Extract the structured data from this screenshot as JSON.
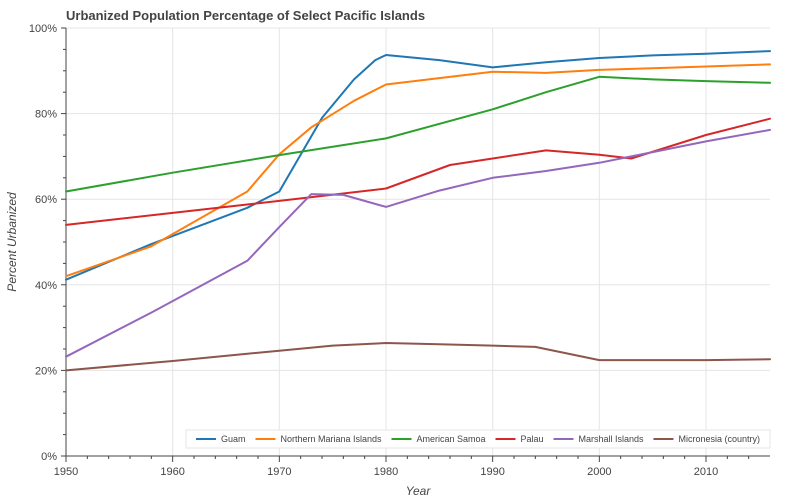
{
  "chart_data": {
    "type": "line",
    "title": "Urbanized Population Percentage of Select Pacific Islands",
    "xlabel": "Year",
    "ylabel": "Percent Urbanized",
    "xlim": [
      1950,
      2016
    ],
    "ylim": [
      0,
      100
    ],
    "xticks": [
      1950,
      1960,
      1970,
      1980,
      1990,
      2000,
      2010
    ],
    "yticks": [
      0,
      20,
      40,
      60,
      80,
      100
    ],
    "ytick_labels": [
      "0%",
      "20%",
      "40%",
      "60%",
      "80%",
      "100%"
    ],
    "grid": true,
    "legend_position": "bottom-right",
    "series": [
      {
        "name": "Guam",
        "color": "#1f77b4",
        "x": [
          1950,
          1958,
          1967,
          1970,
          1974,
          1977,
          1979,
          1980,
          1985,
          1990,
          1995,
          2000,
          2005,
          2010,
          2016
        ],
        "y": [
          41.2,
          49.5,
          58.0,
          61.8,
          79.0,
          88.0,
          92.5,
          93.7,
          92.5,
          90.8,
          92.0,
          93.0,
          93.6,
          94.0,
          94.6
        ]
      },
      {
        "name": "Northern Mariana Islands",
        "color": "#ff7f0e",
        "x": [
          1950,
          1958,
          1967,
          1970,
          1973,
          1977,
          1980,
          1985,
          1990,
          1995,
          2000,
          2005,
          2010,
          2016
        ],
        "y": [
          42.0,
          49.0,
          61.8,
          70.5,
          76.8,
          83.0,
          86.8,
          88.3,
          89.8,
          89.5,
          90.2,
          90.6,
          91.0,
          91.5
        ]
      },
      {
        "name": "American Samoa",
        "color": "#2ca02c",
        "x": [
          1950,
          1960,
          1970,
          1980,
          1990,
          1995,
          2000,
          2005,
          2010,
          2016
        ],
        "y": [
          61.8,
          66.2,
          70.3,
          74.2,
          81.0,
          85.0,
          88.6,
          88.0,
          87.6,
          87.2
        ]
      },
      {
        "name": "Palau",
        "color": "#d62728",
        "x": [
          1950,
          1960,
          1970,
          1980,
          1986,
          1990,
          1995,
          2000,
          2003,
          2010,
          2016
        ],
        "y": [
          54.0,
          56.8,
          59.6,
          62.5,
          68.0,
          69.5,
          71.4,
          70.4,
          69.5,
          75.0,
          78.8
        ]
      },
      {
        "name": "Marshall Islands",
        "color": "#9467bd",
        "x": [
          1950,
          1958,
          1967,
          1970,
          1973,
          1976,
          1980,
          1985,
          1990,
          1995,
          2000,
          2005,
          2010,
          2016
        ],
        "y": [
          23.2,
          33.5,
          45.6,
          53.5,
          61.2,
          61.0,
          58.2,
          62.0,
          65.0,
          66.6,
          68.5,
          71.0,
          73.5,
          76.2
        ]
      },
      {
        "name": "Micronesia (country)",
        "color": "#8c564b",
        "x": [
          1950,
          1960,
          1970,
          1975,
          1980,
          1985,
          1990,
          1994,
          2000,
          2005,
          2010,
          2016
        ],
        "y": [
          20.0,
          22.2,
          24.6,
          25.8,
          26.4,
          26.1,
          25.8,
          25.5,
          22.4,
          22.4,
          22.4,
          22.6
        ]
      }
    ]
  }
}
